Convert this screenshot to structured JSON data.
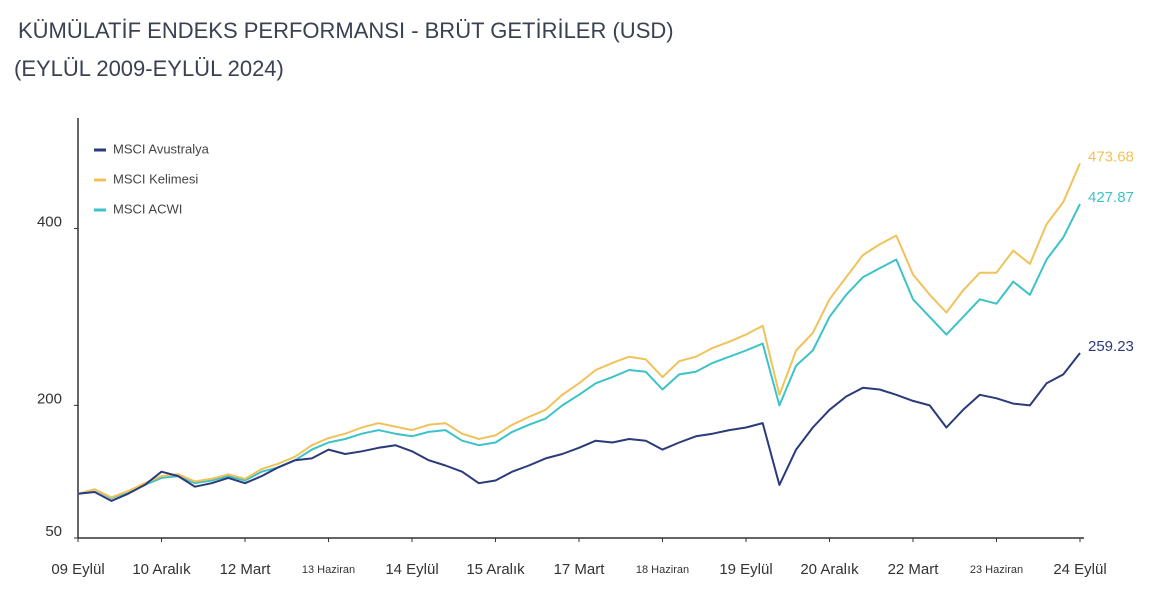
{
  "chart_data": {
    "type": "line",
    "title": "KÜMÜLATİF ENDEKS PERFORMANSI - BRÜT GETİRİLER (USD)",
    "subtitle": "(EYLÜL 2009-EYLÜL 2024)",
    "categories": [
      "09 Eylül",
      null,
      null,
      null,
      null,
      "10 Aralık",
      null,
      null,
      null,
      null,
      "12 Mart",
      null,
      null,
      null,
      null,
      "13 Haziran",
      null,
      null,
      null,
      null,
      "14 Eylül",
      null,
      null,
      null,
      null,
      "15 Aralık",
      null,
      null,
      null,
      null,
      "17 Mart",
      null,
      null,
      null,
      null,
      "18 Haziran",
      null,
      null,
      null,
      null,
      "19 Eylül",
      null,
      null,
      null,
      null,
      "20 Aralık",
      null,
      null,
      null,
      null,
      "22 Mart",
      null,
      null,
      null,
      null,
      "23 Haziran",
      null,
      null,
      null,
      null,
      "24 Eylül"
    ],
    "series": [
      {
        "name": "MSCI Avustralya",
        "color": "#2b3a7a",
        "values": [
          100,
          102,
          92,
          100,
          110,
          125,
          120,
          108,
          112,
          118,
          112,
          120,
          130,
          138,
          140,
          150,
          145,
          148,
          152,
          155,
          148,
          138,
          132,
          125,
          112,
          115,
          125,
          132,
          140,
          145,
          152,
          160,
          158,
          162,
          160,
          150,
          158,
          165,
          168,
          172,
          175,
          180,
          110,
          150,
          175,
          195,
          210,
          220,
          218,
          212,
          205,
          200,
          175,
          195,
          212,
          208,
          202,
          200,
          225,
          235,
          259.23
        ]
      },
      {
        "name": "MSCI Kelimesi",
        "color": "#f0c35a",
        "values": [
          100,
          105,
          96,
          103,
          112,
          120,
          122,
          114,
          117,
          122,
          117,
          128,
          134,
          142,
          155,
          163,
          168,
          175,
          180,
          176,
          172,
          178,
          180,
          168,
          162,
          166,
          178,
          187,
          195,
          212,
          225,
          240,
          248,
          255,
          252,
          232,
          250,
          255,
          265,
          272,
          280,
          290,
          212,
          262,
          282,
          320,
          345,
          370,
          382,
          392,
          348,
          325,
          305,
          330,
          350,
          350,
          375,
          360,
          405,
          430,
          473.68
        ]
      },
      {
        "name": "MSCI ACWI",
        "color": "#3cc3c8",
        "values": [
          100,
          105,
          95,
          102,
          110,
          118,
          120,
          112,
          115,
          120,
          115,
          125,
          130,
          138,
          150,
          158,
          162,
          168,
          172,
          168,
          165,
          170,
          172,
          160,
          155,
          158,
          170,
          178,
          185,
          200,
          212,
          225,
          232,
          240,
          238,
          218,
          235,
          238,
          248,
          255,
          262,
          270,
          200,
          245,
          262,
          300,
          325,
          345,
          355,
          365,
          320,
          300,
          280,
          300,
          320,
          315,
          340,
          325,
          365,
          390,
          427.87
        ]
      }
    ],
    "ylim": [
      50,
      525
    ],
    "yticks": [
      50,
      200,
      400
    ],
    "grid": false
  }
}
